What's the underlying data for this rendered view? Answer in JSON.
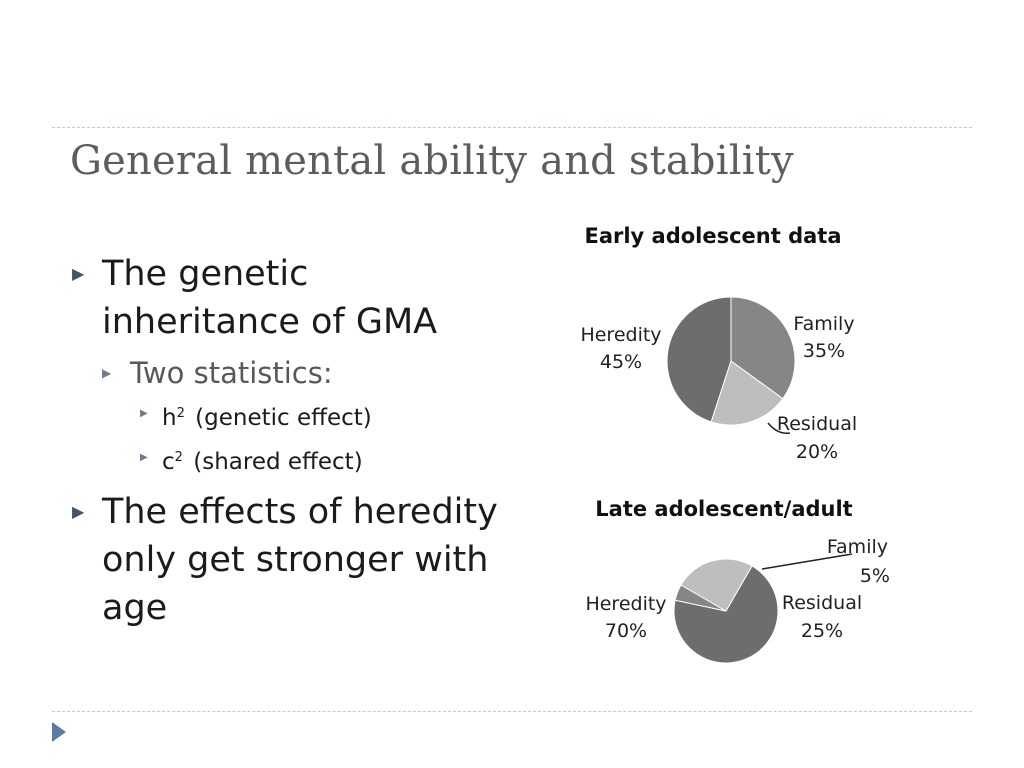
{
  "slide": {
    "title": "General mental ability and stability"
  },
  "bullets": {
    "b1": "The genetic inheritance of GMA",
    "b1_sub": "Two statistics:",
    "h2_symbol": "h",
    "h2_sup": "2",
    "h2_text": "(genetic effect)",
    "c2_symbol": "c",
    "c2_sup": "2",
    "c2_text": "(shared effect)",
    "b2": "The effects of heredity only get stronger with age"
  },
  "colors": {
    "heredity": "#6d6d6d",
    "family": "#868686",
    "residual": "#bebebe",
    "bullet_marker": "#44546a",
    "nav_arrow": "#5b7ba6"
  },
  "chart_data": [
    {
      "type": "pie",
      "title": "Early adolescent data",
      "slices": [
        {
          "name": "Heredity",
          "value": 45,
          "label": "45%"
        },
        {
          "name": "Family",
          "value": 35,
          "label": "35%"
        },
        {
          "name": "Residual",
          "value": 20,
          "label": "20%"
        }
      ]
    },
    {
      "type": "pie",
      "title": "Late adolescent/adult",
      "slices": [
        {
          "name": "Heredity",
          "value": 70,
          "label": "70%"
        },
        {
          "name": "Family",
          "value": 5,
          "label": "5%"
        },
        {
          "name": "Residual",
          "value": 25,
          "label": "25%"
        }
      ]
    }
  ]
}
